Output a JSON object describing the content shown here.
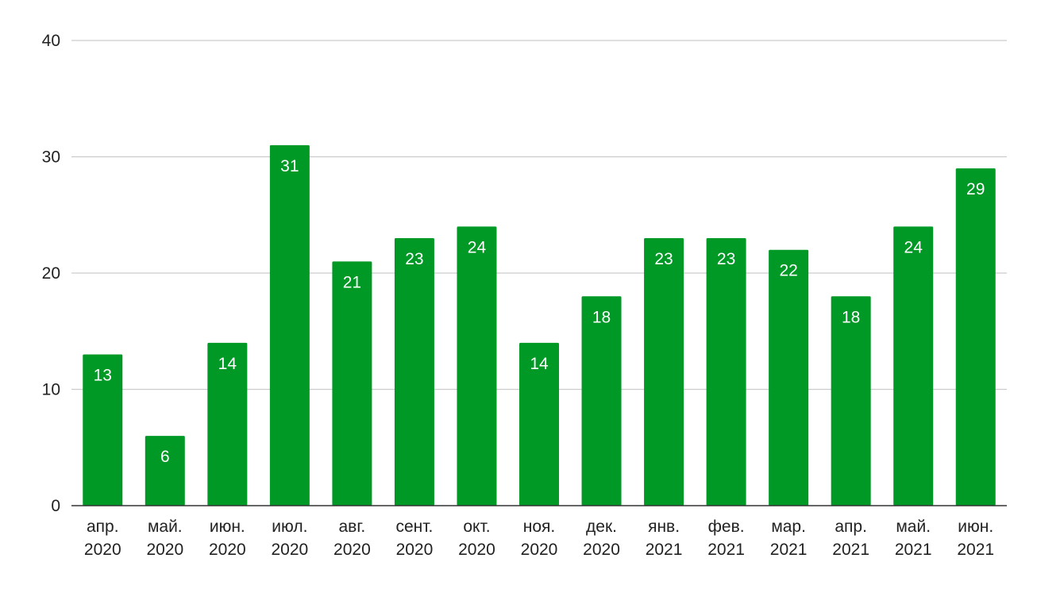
{
  "chart_data": {
    "type": "bar",
    "title": "",
    "xlabel": "",
    "ylabel": "",
    "categories": [
      [
        "апр.",
        "2020"
      ],
      [
        "май.",
        "2020"
      ],
      [
        "июн.",
        "2020"
      ],
      [
        "июл.",
        "2020"
      ],
      [
        "авг.",
        "2020"
      ],
      [
        "сент.",
        "2020"
      ],
      [
        "окт.",
        "2020"
      ],
      [
        "ноя.",
        "2020"
      ],
      [
        "дек.",
        "2020"
      ],
      [
        "янв.",
        "2021"
      ],
      [
        "фев.",
        "2021"
      ],
      [
        "мар.",
        "2021"
      ],
      [
        "апр.",
        "2021"
      ],
      [
        "май.",
        "2021"
      ],
      [
        "июн.",
        "2021"
      ]
    ],
    "values": [
      13,
      6,
      14,
      31,
      21,
      23,
      24,
      14,
      18,
      23,
      23,
      22,
      18,
      24,
      29
    ],
    "ylim": [
      0,
      40
    ],
    "yticks": [
      0,
      10,
      20,
      30,
      40
    ],
    "grid": true,
    "legend": "none",
    "data_labels": true
  },
  "colors": {
    "bar": "#009925",
    "grid": "#cccccc",
    "axis": "#333333",
    "bar_label": "#ffffff"
  }
}
